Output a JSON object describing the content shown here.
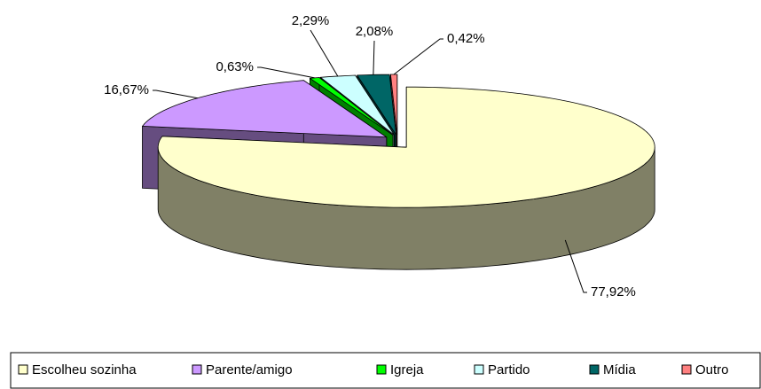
{
  "chart_data": {
    "type": "pie",
    "three_d": true,
    "categories": [
      "Escolheu sozinha",
      "Parente/amigo",
      "Igreja",
      "Partido",
      "Mídia",
      "Outro"
    ],
    "values": [
      77.92,
      16.67,
      0.63,
      2.29,
      2.08,
      0.42
    ],
    "value_labels": [
      "77,92%",
      "16,67%",
      "0,63%",
      "2,29%",
      "2,08%",
      "0,42%"
    ],
    "colors": [
      "#ffffcc",
      "#cc99ff",
      "#00ff00",
      "#ccffff",
      "#006666",
      "#ff8080"
    ],
    "legend": "bottom"
  }
}
